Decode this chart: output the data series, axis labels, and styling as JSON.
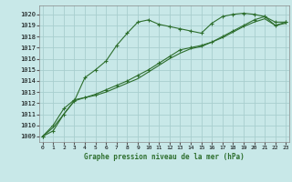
{
  "title": "Graphe pression niveau de la mer (hPa)",
  "background_color": "#c8e8e8",
  "grid_color": "#a8cece",
  "line_color": "#2d6e2d",
  "x_ticks": [
    0,
    1,
    2,
    3,
    4,
    5,
    6,
    7,
    8,
    9,
    10,
    11,
    12,
    13,
    14,
    15,
    16,
    17,
    18,
    19,
    20,
    21,
    22,
    23
  ],
  "y_ticks": [
    1009,
    1010,
    1011,
    1012,
    1013,
    1014,
    1015,
    1016,
    1017,
    1018,
    1019,
    1020
  ],
  "ylim": [
    1008.5,
    1020.8
  ],
  "xlim": [
    -0.3,
    23.3
  ],
  "series1": [
    1009.0,
    1009.5,
    1011.0,
    1012.2,
    1014.3,
    1015.0,
    1015.8,
    1017.2,
    1018.3,
    1019.3,
    1019.5,
    1019.1,
    1018.9,
    1018.7,
    1018.5,
    1018.3,
    1019.2,
    1019.8,
    1020.0,
    1020.1,
    1020.0,
    1019.8,
    1019.3,
    1019.3
  ],
  "series2": [
    1009.0,
    1010.0,
    1011.5,
    1012.3,
    1012.5,
    1012.8,
    1013.2,
    1013.6,
    1014.0,
    1014.5,
    1015.0,
    1015.6,
    1016.2,
    1016.8,
    1017.0,
    1017.2,
    1017.5,
    1018.0,
    1018.5,
    1019.0,
    1019.5,
    1019.8,
    1019.0,
    1019.3
  ],
  "series3": [
    1009.0,
    1009.8,
    1011.0,
    1012.2,
    1012.5,
    1012.7,
    1013.0,
    1013.4,
    1013.8,
    1014.2,
    1014.8,
    1015.4,
    1016.0,
    1016.5,
    1016.9,
    1017.1,
    1017.5,
    1017.9,
    1018.4,
    1018.9,
    1019.3,
    1019.6,
    1019.0,
    1019.2
  ],
  "marker": "+",
  "figsize": [
    3.2,
    2.0
  ],
  "dpi": 100
}
